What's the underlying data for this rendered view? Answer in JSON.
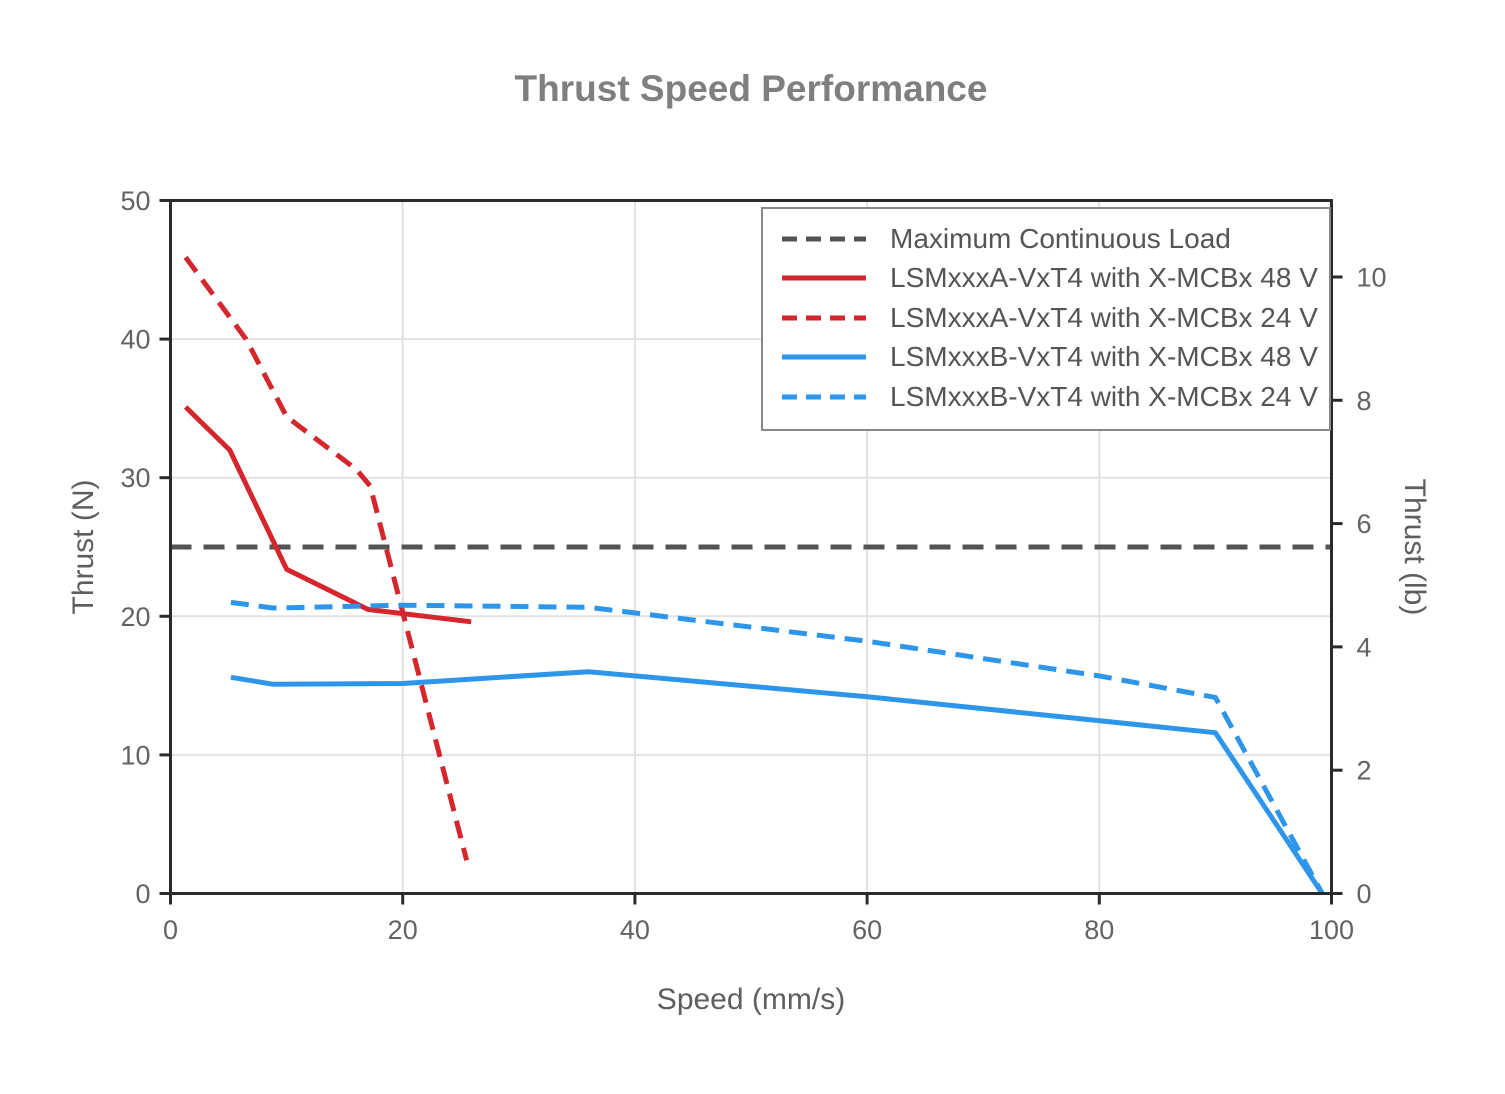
{
  "title": "Thrust Speed Performance",
  "colors": {
    "red_series": "#d4262c",
    "blue_series": "#2d96ea",
    "max_load_line": "#545454",
    "title_text": "#7f7f7f",
    "axis_title_text": "#5e5e5e",
    "tick_label_text": "#636363",
    "legend_text": "#555555",
    "legend_border": "#888888",
    "gridline": "#e2e2e2",
    "axis_frame": "#2a2a2a",
    "background": "#ffffff"
  },
  "chart_data": {
    "type": "line",
    "title": "Thrust Speed Performance",
    "xlabel": "Speed (mm/s)",
    "ylabel_left": "Thrust (N)",
    "ylabel_right": "Thrust (lb)",
    "xlim": [
      0,
      100
    ],
    "ylim_left": [
      0,
      50
    ],
    "ylim_right": [
      0,
      11.24
    ],
    "newtons_per_lb": 4.4482,
    "x_ticks": [
      0,
      20,
      40,
      60,
      80,
      100
    ],
    "y_ticks_left": [
      0,
      10,
      20,
      30,
      40,
      50
    ],
    "y_ticks_right": [
      0,
      2,
      4,
      6,
      8,
      10
    ],
    "grid": true,
    "legend_position": "top-right",
    "series": [
      {
        "name": "Maximum Continuous Load",
        "color": "#545454",
        "style": "dashed",
        "width": 5,
        "points": [
          [
            0,
            25
          ],
          [
            100,
            25
          ]
        ]
      },
      {
        "name": "LSMxxxA-VxT4 with X-MCBx 48 V",
        "color": "#d4262c",
        "style": "solid",
        "width": 5,
        "points": [
          [
            1.3,
            35.1
          ],
          [
            5.1,
            32.0
          ],
          [
            10,
            23.4
          ],
          [
            17,
            20.5
          ],
          [
            25.9,
            19.6
          ]
        ]
      },
      {
        "name": "LSMxxxA-VxT4 with X-MCBx 24 V",
        "color": "#d4262c",
        "style": "dashed",
        "width": 5,
        "points": [
          [
            1.3,
            45.9
          ],
          [
            6.5,
            40.0
          ],
          [
            10,
            34.4
          ],
          [
            16,
            30.6
          ],
          [
            17.2,
            29.4
          ],
          [
            25.5,
            2.4
          ]
        ]
      },
      {
        "name": "LSMxxxB-VxT4 with X-MCBx 48 V",
        "color": "#2d96ea",
        "style": "solid",
        "width": 5,
        "points": [
          [
            5.2,
            15.6
          ],
          [
            8.8,
            15.1
          ],
          [
            20,
            15.15
          ],
          [
            36,
            16.0
          ],
          [
            60,
            14.2
          ],
          [
            90,
            11.6
          ],
          [
            99.2,
            0
          ]
        ]
      },
      {
        "name": "LSMxxxB-VxT4 with X-MCBx 24 V",
        "color": "#2d96ea",
        "style": "dashed",
        "width": 5,
        "points": [
          [
            5.2,
            21.0
          ],
          [
            8.8,
            20.6
          ],
          [
            20,
            20.8
          ],
          [
            36,
            20.65
          ],
          [
            60,
            18.2
          ],
          [
            80,
            15.7
          ],
          [
            90,
            14.15
          ],
          [
            99.2,
            0
          ]
        ]
      }
    ]
  }
}
